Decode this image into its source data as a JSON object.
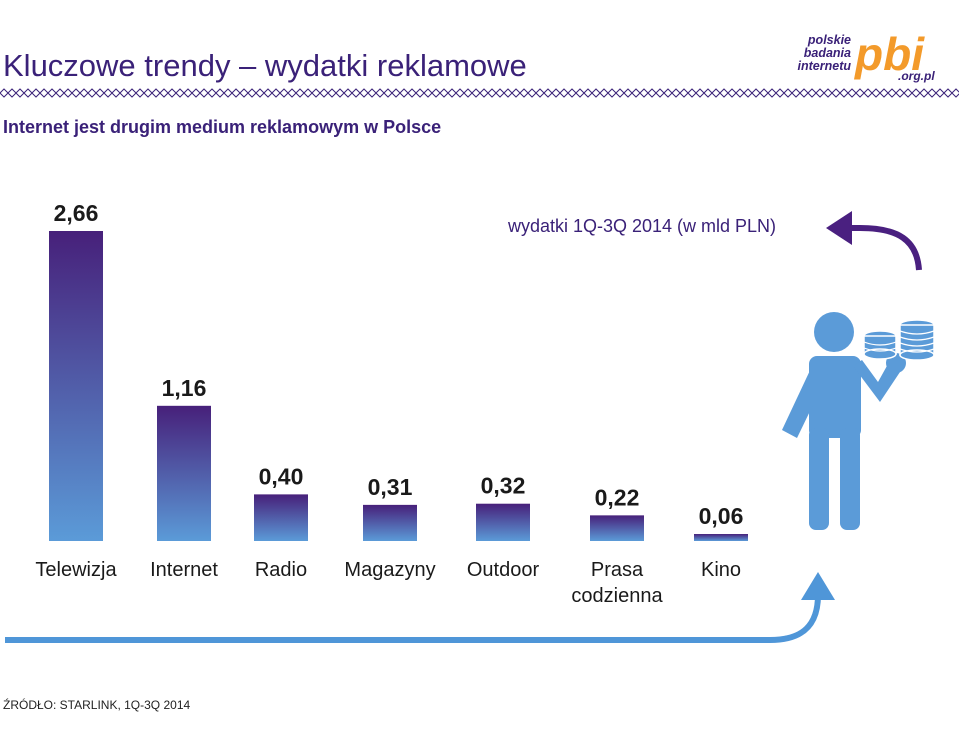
{
  "header": {
    "title": "Kluczowe trendy – wydatki reklamowe",
    "subtitle": "Internet jest drugim medium reklamowym w Polsce"
  },
  "logo": {
    "line1": "polskie",
    "line2": "badania",
    "line3": "internetu",
    "mark": "pbi",
    "domain": ".org.pl"
  },
  "chart_data": {
    "type": "bar",
    "title": "",
    "annotation": "wydatki 1Q-3Q 2014 (w mld PLN)",
    "categories": [
      "Telewizja",
      "Internet",
      "Radio",
      "Magazyny",
      "Outdoor",
      "Prasa codzienna",
      "Kino"
    ],
    "category_lines": [
      [
        "Telewizja"
      ],
      [
        "Internet"
      ],
      [
        "Radio"
      ],
      [
        "Magazyny"
      ],
      [
        "Outdoor"
      ],
      [
        "Prasa",
        "codzienna"
      ],
      [
        "Kino"
      ]
    ],
    "values": [
      2.66,
      1.16,
      0.4,
      0.31,
      0.32,
      0.22,
      0.06
    ],
    "value_labels": [
      "2,66",
      "1,16",
      "0,40",
      "0,31",
      "0,32",
      "0,22",
      "0,06"
    ],
    "ylim": [
      0,
      2.66
    ],
    "grid": false,
    "legend": "none",
    "colors": {
      "bar_top": "#47207a",
      "bar_bottom": "#5b9bd8"
    }
  },
  "colors": {
    "title": "#3a2178",
    "accent_orange": "#f39a2a",
    "arrow_purple": "#4a2080",
    "arrow_blue": "#4f96d8",
    "figure_blue": "#5b9bd8"
  },
  "footer": {
    "source": "ŹRÓDŁO: STARLINK, 1Q-3Q 2014"
  }
}
